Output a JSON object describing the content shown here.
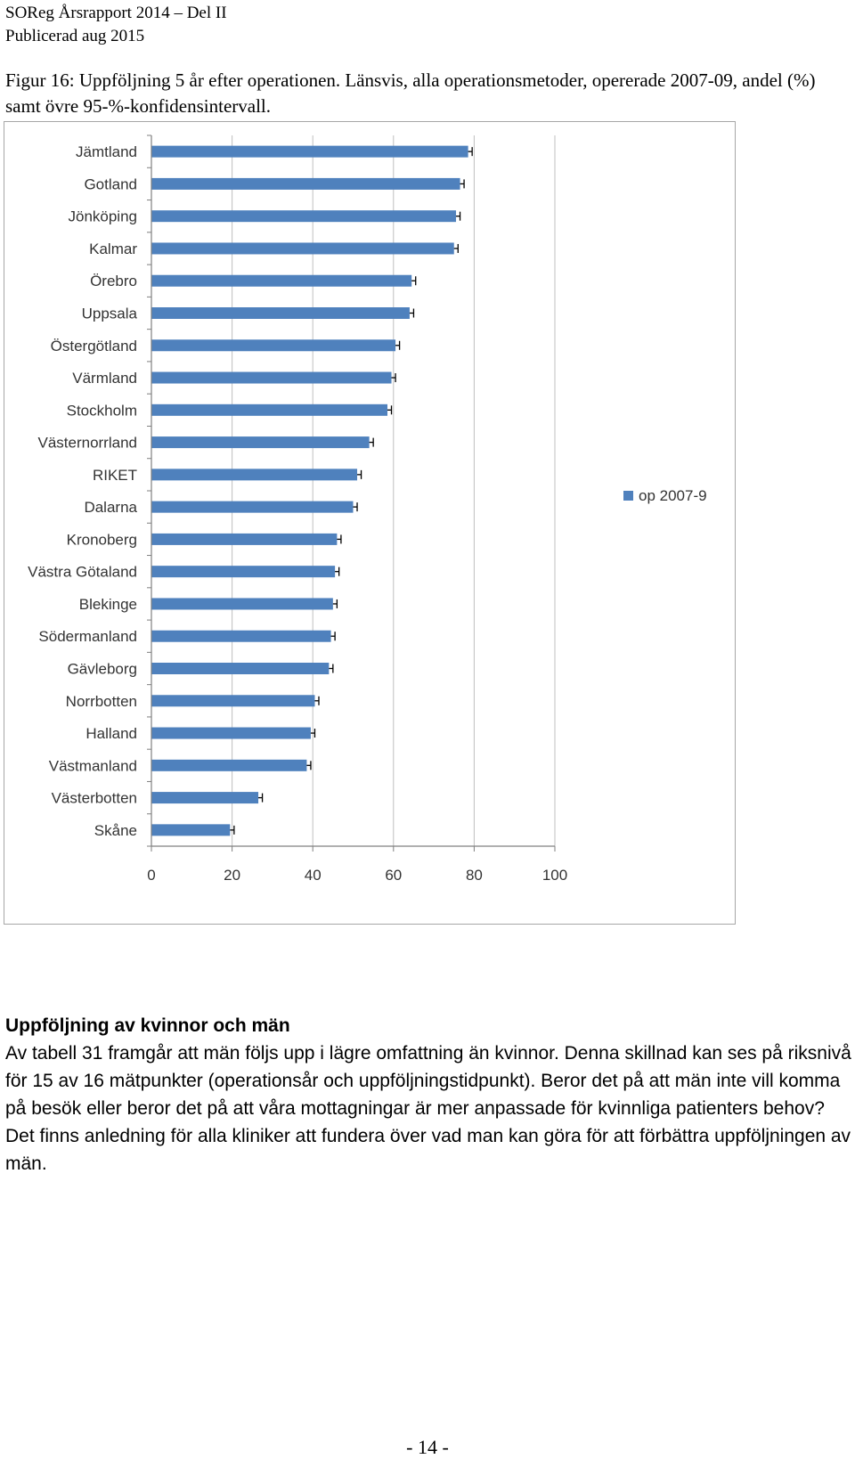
{
  "header": {
    "line1": "SOReg Årsrapport 2014 – Del II",
    "line2": "Publicerad aug 2015"
  },
  "caption": "Figur 16: Uppföljning 5 år efter operationen. Länsvis, alla operationsmetoder, opererade 2007-09, andel (%) samt övre 95-%-konfidensintervall.",
  "chart_data": {
    "type": "bar",
    "orientation": "horizontal",
    "title": "",
    "xlabel": "",
    "ylabel": "",
    "xlim": [
      0,
      100
    ],
    "xticks": [
      0,
      20,
      40,
      60,
      80,
      100
    ],
    "grid": true,
    "legend_position": "right",
    "bar_color": "#4f81bd",
    "categories": [
      "Jämtland",
      "Gotland",
      "Jönköping",
      "Kalmar",
      "Örebro",
      "Uppsala",
      "Östergötland",
      "Värmland",
      "Stockholm",
      "Västernorrland",
      "RIKET",
      "Dalarna",
      "Kronoberg",
      "Västra Götaland",
      "Blekinge",
      "Södermanland",
      "Gävleborg",
      "Norrbotten",
      "Halland",
      "Västmanland",
      "Västerbotten",
      "Skåne"
    ],
    "series": [
      {
        "name": "op 2007-9",
        "values": [
          78.5,
          76.5,
          75.5,
          75,
          64.5,
          64,
          60.5,
          59.5,
          58.5,
          54,
          51,
          50,
          46,
          45.5,
          45,
          44.5,
          44,
          40.5,
          39.5,
          38.5,
          26.5,
          19.5
        ],
        "upper_ci": [
          79.5,
          77.5,
          76.5,
          76,
          65.5,
          65,
          61.5,
          60.5,
          59.5,
          55,
          52,
          51,
          47,
          46.5,
          46,
          45.5,
          45,
          41.5,
          40.5,
          39.5,
          27.5,
          20.5
        ]
      }
    ]
  },
  "section": {
    "title": "Uppföljning av kvinnor och män",
    "body": "Av tabell 31 framgår att män följs upp i lägre omfattning än kvinnor. Denna skillnad kan ses på riksnivå för 15 av 16 mätpunkter (operationsår och uppföljningstidpunkt). Beror det på att män inte vill komma på besök eller beror det på att våra mottagningar är mer anpassade för kvinnliga patienters behov? Det finns anledning för alla kliniker att fundera över vad man kan göra för att förbättra uppföljningen av män."
  },
  "footer": {
    "page_number": "- 14 -"
  }
}
